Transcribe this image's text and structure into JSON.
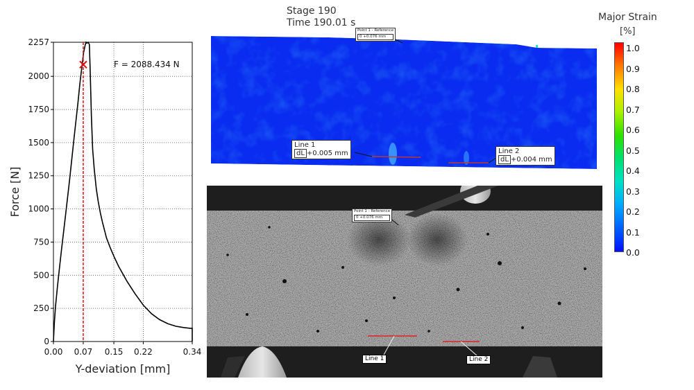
{
  "header": {
    "stage": "Stage 190",
    "time": "Time  190.01 s"
  },
  "chart_data": {
    "type": "line",
    "xlabel": "Y-deviation [mm]",
    "ylabel": "Force [N]",
    "xlim": [
      0,
      0.34
    ],
    "ylim": [
      0,
      2257
    ],
    "xticks": [
      "0.00",
      "0.07",
      "0.15",
      "0.22",
      "0.34"
    ],
    "xtick_values": [
      0,
      0.073,
      0.148,
      0.22,
      0.34
    ],
    "yticks": [
      "0",
      "250",
      "500",
      "750",
      "1000",
      "1250",
      "1500",
      "1750",
      "2000",
      "2257"
    ],
    "ytick_values": [
      0,
      250,
      500,
      750,
      1000,
      1250,
      1500,
      1750,
      2000,
      2257
    ],
    "grid": true,
    "series": [
      {
        "color": "#000000",
        "x": [
          0,
          0.002,
          0.005,
          0.01,
          0.015,
          0.02,
          0.03,
          0.04,
          0.05,
          0.06,
          0.065,
          0.07,
          0.074,
          0.078,
          0.08,
          0.082,
          0.085,
          0.088,
          0.09,
          0.093,
          0.096,
          0.1,
          0.105,
          0.11,
          0.115,
          0.12,
          0.13,
          0.14,
          0.15,
          0.16,
          0.17,
          0.18,
          0.2,
          0.22,
          0.24,
          0.26,
          0.28,
          0.3,
          0.32,
          0.335,
          0.34,
          0.34
        ],
        "y": [
          0,
          130,
          260,
          420,
          560,
          700,
          960,
          1230,
          1520,
          1800,
          1950,
          2080,
          2180,
          2240,
          2257,
          2250,
          2257,
          2240,
          2050,
          1700,
          1450,
          1300,
          1150,
          1050,
          970,
          900,
          780,
          700,
          630,
          565,
          510,
          455,
          360,
          275,
          210,
          165,
          135,
          115,
          105,
          100,
          100,
          0
        ]
      }
    ],
    "marker": {
      "x": 0.073,
      "y": 2088.434,
      "label": "F = 2088.434 N",
      "color": "#dd1111"
    }
  },
  "strain_map": {
    "colorbar": {
      "title": "Major Strain",
      "unit": "[%]",
      "ticks": [
        "1.0",
        "0.9",
        "0.8",
        "0.7",
        "0.6",
        "0.5",
        "0.4",
        "0.3",
        "0.2",
        "0.1",
        "0.0"
      ],
      "colors": [
        "#ff0000",
        "#ff7a00",
        "#ffe000",
        "#a8f000",
        "#2ee000",
        "#00e070",
        "#00e0c8",
        "#00a8ff",
        "#0060ff",
        "#0010ff"
      ]
    },
    "line1": {
      "name": "Line 1",
      "value": "+0.005 mm"
    },
    "line2": {
      "name": "Line 2",
      "value": "+0.004 mm"
    },
    "point_label": {
      "name": "Point 1 - Reference",
      "value": "0     +0.076 mm"
    }
  },
  "camera_view": {
    "line1": "Line 1",
    "line2": "Line 2",
    "point_label": {
      "name": "Point 1 - Reference",
      "value": "0     +0.076 mm"
    }
  }
}
